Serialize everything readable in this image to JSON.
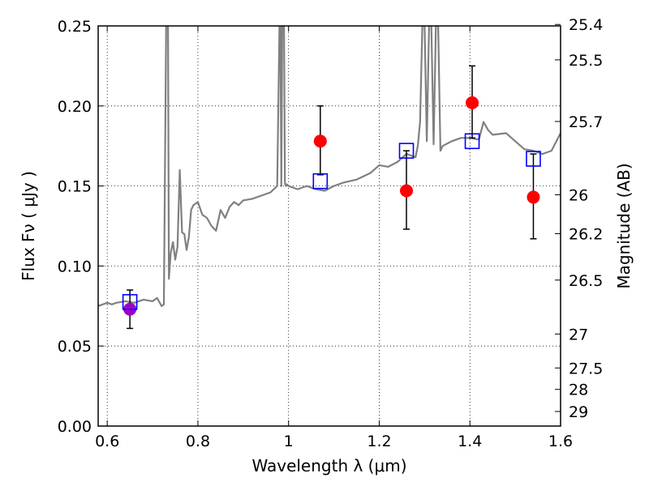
{
  "chart_data": {
    "type": "scatter",
    "xlabel": "Wavelength  λ (μm)",
    "ylabel": "Flux  Fν  ( μJy )",
    "y2label": "Magnitude (AB)",
    "xlim": [
      0.58,
      1.6
    ],
    "ylim": [
      0.0,
      0.25
    ],
    "grid": true,
    "x_ticks": [
      {
        "value": 0.6,
        "label": "0.6"
      },
      {
        "value": 0.8,
        "label": "0.8"
      },
      {
        "value": 1.0,
        "label": "1"
      },
      {
        "value": 1.2,
        "label": "1.2"
      },
      {
        "value": 1.4,
        "label": "1.4"
      },
      {
        "value": 1.6,
        "label": "1.6"
      }
    ],
    "y_ticks": [
      {
        "value": 0.0,
        "label": "0.00"
      },
      {
        "value": 0.05,
        "label": "0.05"
      },
      {
        "value": 0.1,
        "label": "0.10"
      },
      {
        "value": 0.15,
        "label": "0.15"
      },
      {
        "value": 0.2,
        "label": "0.20"
      },
      {
        "value": 0.25,
        "label": "0.25"
      }
    ],
    "y2_ticks": [
      {
        "flux": 0.2509,
        "label": "25.4"
      },
      {
        "flux": 0.2288,
        "label": "25.5"
      },
      {
        "flux": 0.1903,
        "label": "25.7"
      },
      {
        "flux": 0.1445,
        "label": "26"
      },
      {
        "flux": 0.1202,
        "label": "26.2"
      },
      {
        "flux": 0.0912,
        "label": "26.5"
      },
      {
        "flux": 0.0575,
        "label": "27"
      },
      {
        "flux": 0.0363,
        "label": "27.5"
      },
      {
        "flux": 0.0229,
        "label": "28"
      },
      {
        "flux": 0.0091,
        "label": "29"
      }
    ],
    "series": [
      {
        "kind": "model_spectrum",
        "color": "#808080",
        "x": [
          0.58,
          0.59,
          0.6,
          0.61,
          0.62,
          0.64,
          0.66,
          0.68,
          0.7,
          0.71,
          0.72,
          0.725,
          0.73,
          0.732,
          0.734,
          0.736,
          0.738,
          0.74,
          0.745,
          0.75,
          0.755,
          0.76,
          0.765,
          0.77,
          0.775,
          0.78,
          0.785,
          0.79,
          0.8,
          0.81,
          0.82,
          0.83,
          0.84,
          0.85,
          0.86,
          0.87,
          0.88,
          0.89,
          0.9,
          0.92,
          0.94,
          0.96,
          0.975,
          0.98,
          0.982,
          0.984,
          0.986,
          0.99,
          0.992,
          0.994,
          0.996,
          1.0,
          1.02,
          1.04,
          1.06,
          1.08,
          1.1,
          1.12,
          1.15,
          1.18,
          1.2,
          1.22,
          1.24,
          1.26,
          1.28,
          1.285,
          1.29,
          1.295,
          1.3,
          1.305,
          1.31,
          1.315,
          1.32,
          1.325,
          1.33,
          1.335,
          1.34,
          1.36,
          1.38,
          1.4,
          1.42,
          1.43,
          1.44,
          1.45,
          1.48,
          1.5,
          1.52,
          1.54,
          1.56,
          1.58,
          1.6
        ],
        "values": [
          0.075,
          0.076,
          0.077,
          0.076,
          0.077,
          0.078,
          0.077,
          0.079,
          0.078,
          0.08,
          0.075,
          0.076,
          0.25,
          0.25,
          0.25,
          0.092,
          0.1,
          0.108,
          0.115,
          0.104,
          0.112,
          0.16,
          0.121,
          0.12,
          0.11,
          0.118,
          0.135,
          0.138,
          0.14,
          0.132,
          0.13,
          0.125,
          0.122,
          0.135,
          0.13,
          0.137,
          0.14,
          0.138,
          0.141,
          0.142,
          0.144,
          0.146,
          0.15,
          0.25,
          0.25,
          0.15,
          0.25,
          0.25,
          0.152,
          0.15,
          0.151,
          0.15,
          0.148,
          0.15,
          0.148,
          0.147,
          0.15,
          0.152,
          0.154,
          0.158,
          0.163,
          0.162,
          0.165,
          0.17,
          0.168,
          0.175,
          0.19,
          0.25,
          0.25,
          0.178,
          0.25,
          0.25,
          0.176,
          0.25,
          0.25,
          0.172,
          0.175,
          0.178,
          0.18,
          0.18,
          0.179,
          0.19,
          0.185,
          0.182,
          0.183,
          0.178,
          0.173,
          0.172,
          0.17,
          0.172,
          0.183
        ]
      },
      {
        "kind": "observed",
        "color": "#ff0000",
        "points": [
          {
            "x": 1.07,
            "y": 0.178,
            "err": [
              0.157,
              0.2
            ]
          },
          {
            "x": 1.26,
            "y": 0.147,
            "err": [
              0.123,
              0.172
            ]
          },
          {
            "x": 1.405,
            "y": 0.202,
            "err": [
              0.18,
              0.225
            ]
          },
          {
            "x": 1.54,
            "y": 0.143,
            "err": [
              0.117,
              0.17
            ]
          }
        ]
      },
      {
        "kind": "observed",
        "color": "#a000c8",
        "points": [
          {
            "x": 0.65,
            "y": 0.073,
            "err": [
              0.061,
              0.085
            ]
          }
        ]
      },
      {
        "kind": "model_photometry",
        "color": "#0000ff",
        "points": [
          {
            "x": 0.65,
            "y": 0.0775
          },
          {
            "x": 1.07,
            "y": 0.153
          },
          {
            "x": 1.26,
            "y": 0.172
          },
          {
            "x": 1.405,
            "y": 0.178
          },
          {
            "x": 1.54,
            "y": 0.167
          }
        ]
      }
    ]
  }
}
